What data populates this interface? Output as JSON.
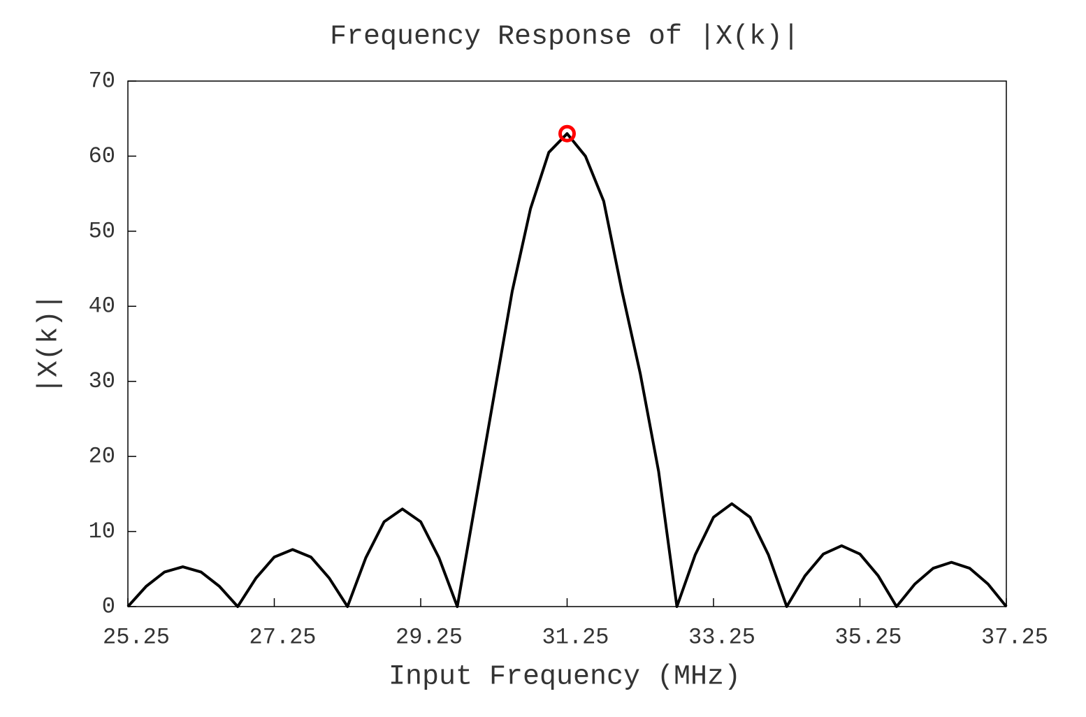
{
  "chart_data": {
    "type": "line",
    "title": "Frequency Response of |X(k)|",
    "x_label": "Input Frequency (MHz)",
    "y_label": "|X(k)|",
    "x": [
      25.25,
      25.5,
      25.75,
      26.0,
      26.25,
      26.5,
      26.75,
      27.0,
      27.25,
      27.5,
      27.75,
      28.0,
      28.25,
      28.5,
      28.75,
      29.0,
      29.25,
      29.5,
      29.75,
      30.0,
      30.25,
      30.5,
      30.75,
      31.0,
      31.25,
      31.5,
      31.75,
      32.0,
      32.25,
      32.5,
      32.75,
      33.0,
      33.25,
      33.5,
      33.75,
      34.0,
      34.25,
      34.5,
      34.75,
      35.0,
      35.25,
      35.5,
      35.75,
      36.0,
      36.25,
      36.5,
      36.75,
      37.0,
      37.25
    ],
    "series": [
      {
        "color": "#000000",
        "values": [
          0,
          2.7,
          4.6,
          5.3,
          4.6,
          2.7,
          0,
          3.8,
          6.6,
          7.6,
          6.6,
          3.8,
          0,
          6.5,
          11.3,
          13,
          11.3,
          6.5,
          0,
          14,
          28,
          42,
          53,
          60.5,
          63,
          60,
          54,
          42,
          31,
          18,
          0,
          6.9,
          11.9,
          13.7,
          11.9,
          6.9,
          0,
          4.1,
          7.0,
          8.1,
          7.0,
          4.1,
          0,
          3.0,
          5.1,
          5.9,
          5.1,
          3.0,
          0
        ]
      }
    ],
    "peak": {
      "x": 31.25,
      "value": 63,
      "color": "#ff0000"
    },
    "xlim": [
      25.25,
      37.25
    ],
    "xticks": [
      25.25,
      27.25,
      29.25,
      31.25,
      33.25,
      35.25,
      37.25
    ],
    "ylim": [
      0,
      70
    ],
    "yticks": [
      0,
      10,
      20,
      30,
      40,
      50,
      60,
      70
    ],
    "grid": false
  }
}
